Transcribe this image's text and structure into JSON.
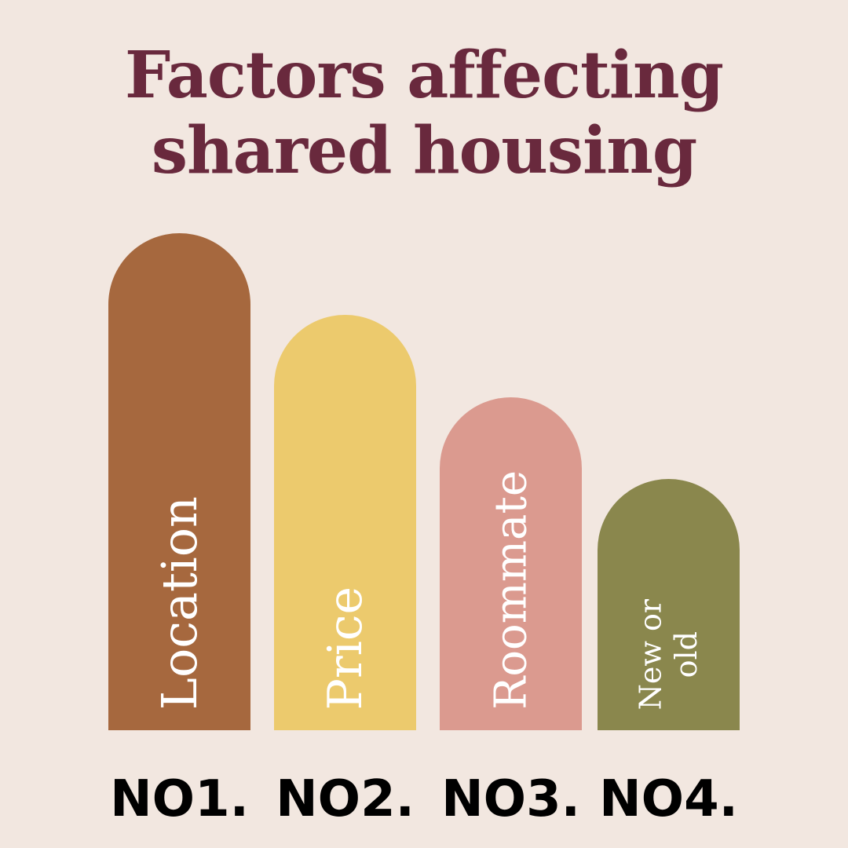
{
  "chart_data": {
    "type": "bar",
    "title_lines": [
      "Factors affecting",
      "shared housing"
    ],
    "categories": [
      "Location",
      "Price",
      "Roommate",
      "New or old"
    ],
    "category_lines": [
      [
        "Location"
      ],
      [
        "Price"
      ],
      [
        "Roommate"
      ],
      [
        "New or",
        "old"
      ]
    ],
    "ranks": [
      "NO1.",
      "NO2.",
      "NO3.",
      "NO4."
    ],
    "values": [
      4,
      3,
      2,
      1
    ],
    "colors": [
      "#a6683e",
      "#ecca6d",
      "#db9a8f",
      "#8a874d"
    ],
    "title_color": "#69293d",
    "background": "#f2e7e0"
  }
}
